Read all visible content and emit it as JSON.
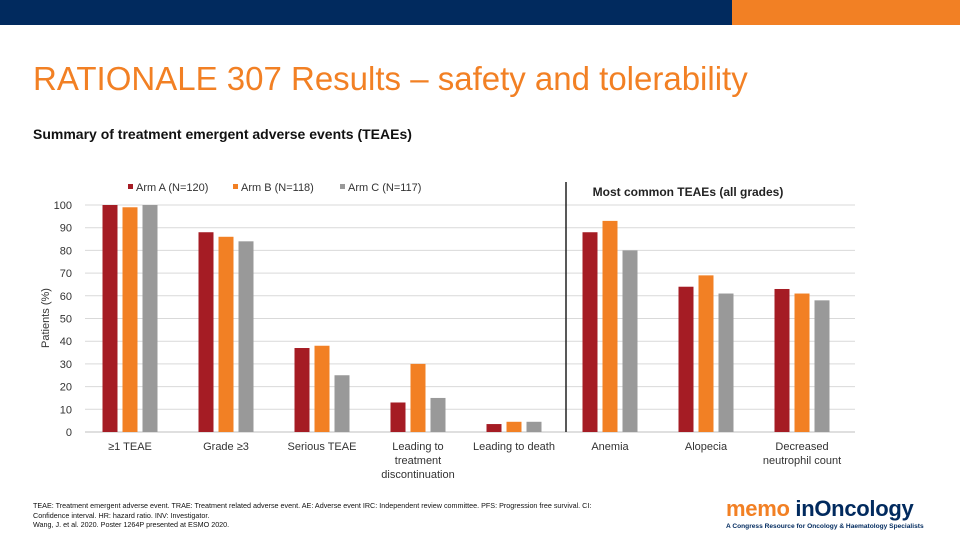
{
  "header": {
    "title": "RATIONALE 307 Results – safety and tolerability",
    "navy_color": "#012a5e",
    "orange_color": "#f28024"
  },
  "subtitle": "Summary of treatment emergent adverse events (TEAEs)",
  "chart_data": {
    "type": "bar",
    "ylabel": "Patients (%)",
    "ylim": [
      0,
      100
    ],
    "yticks": [
      0,
      10,
      20,
      30,
      40,
      50,
      60,
      70,
      80,
      90,
      100
    ],
    "grid": true,
    "legend_position": "top",
    "right_panel_title": "Most common TEAEs (all grades)",
    "categories": [
      "≥1 TEAE",
      "Grade ≥3",
      "Serious TEAE",
      "Leading to treatment discontinuation",
      "Leading to death",
      "Anemia",
      "Alopecia",
      "Decreased neutrophil count"
    ],
    "series": [
      {
        "name": "Arm A (N=120)",
        "color": "#a51c24",
        "values": [
          100,
          88,
          37,
          13,
          3.5,
          88,
          64,
          63
        ]
      },
      {
        "name": "Arm B (N=118)",
        "color": "#f28024",
        "values": [
          99,
          86,
          38,
          30,
          4.5,
          93,
          69,
          61
        ]
      },
      {
        "name": "Arm C (N=117)",
        "color": "#999999",
        "values": [
          100,
          84,
          25,
          15,
          4.5,
          80,
          61,
          58
        ]
      }
    ]
  },
  "footnote": {
    "line1": "TEAE: Treatment emergent adverse event. TRAE: Treatment related adverse event. AE: Adverse event IRC: Independent review committee. PFS: Progression free survival.  CI:",
    "line2": "Confidence interval. HR: hazard ratio. INV: Investigator.",
    "line3": "Wang, J. et al. 2020. Poster 1264P presented at ESMO 2020."
  },
  "logo": {
    "memo": "memo",
    "oncology": "inOncology",
    "tagline": "A Congress Resource for Oncology & Haematology Specialists"
  }
}
